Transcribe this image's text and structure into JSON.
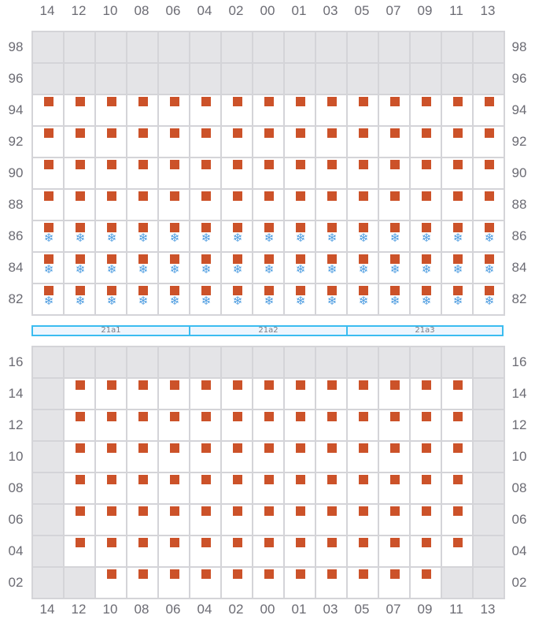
{
  "colors": {
    "occupied": "#cc5229",
    "cold": "#4a9be0",
    "unavailable": "#e4e4e7",
    "border": "#d4d4d8",
    "zone": "#3bbcf0"
  },
  "legend_icons": {
    "occupied": "square-marker",
    "cold": "snowflake-icon"
  },
  "snow_glyph": "❄",
  "columns": [
    "14",
    "12",
    "10",
    "08",
    "06",
    "04",
    "02",
    "00",
    "01",
    "03",
    "05",
    "07",
    "09",
    "11",
    "13"
  ],
  "top_grid": {
    "rows": [
      "98",
      "96",
      "94",
      "92",
      "90",
      "88",
      "86",
      "84",
      "82"
    ],
    "cells": [
      "ggggggggggggggg",
      "ggggggggggggggg",
      "sssssssssssssss",
      "sssssssssssssss",
      "sssssssssssssss",
      "sssssssssssssss",
      "fffffffffffffff",
      "fffffffffffffff",
      "fffffffffffffff"
    ]
  },
  "zones": [
    "21a1",
    "21a2",
    "21a3"
  ],
  "bottom_grid": {
    "rows": [
      "16",
      "14",
      "12",
      "10",
      "08",
      "06",
      "04",
      "02"
    ],
    "cells": [
      "ggggggggggggggg",
      "gsssssssssssssg",
      "gsssssssssssssg",
      "gsssssssssssssg",
      "gsssssssssssssg",
      "gsssssssssssssg",
      "gsssssssssssssg",
      "ggsssssssssssgg"
    ]
  }
}
